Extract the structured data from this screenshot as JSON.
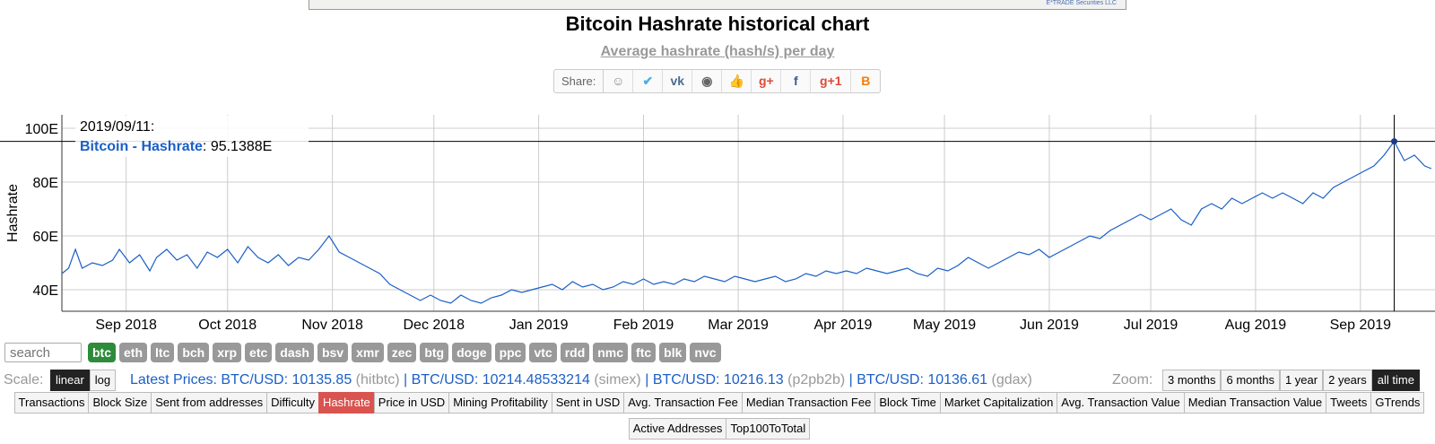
{
  "ad": {
    "text": "E*TRADE Securities LLC"
  },
  "header": {
    "title": "Bitcoin Hashrate historical chart",
    "subtitle": "Average hashrate (hash/s) per day"
  },
  "share": {
    "label": "Share:",
    "icons": [
      {
        "name": "reddit-icon",
        "glyph": "☺",
        "color": "#888"
      },
      {
        "name": "twitter-icon",
        "glyph": "✔",
        "color": "#4ab0e6"
      },
      {
        "name": "vk-icon",
        "glyph": "vk",
        "color": "#4c6c91"
      },
      {
        "name": "weibo-icon",
        "glyph": "◉",
        "color": "#666"
      },
      {
        "name": "like-icon",
        "glyph": "👍",
        "color": "#5b7bb5"
      },
      {
        "name": "google-plus-icon",
        "glyph": "g+",
        "color": "#dd4b39"
      },
      {
        "name": "facebook-icon",
        "glyph": "f",
        "color": "#3b5998"
      },
      {
        "name": "google-plus-one-icon",
        "glyph": "g+1",
        "color": "#dd4b39"
      },
      {
        "name": "blogger-icon",
        "glyph": "B",
        "color": "#f57d00"
      }
    ]
  },
  "chart_data": {
    "type": "line",
    "ylabel": "Hashrate",
    "ylim": [
      32,
      105
    ],
    "yticks": [
      {
        "label": "40E",
        "value": 40
      },
      {
        "label": "60E",
        "value": 60
      },
      {
        "label": "80E",
        "value": 80
      },
      {
        "label": "100E",
        "value": 100
      }
    ],
    "xlim": [
      "2018-08-13",
      "2019-09-22"
    ],
    "xticks": [
      {
        "label": "Sep 2018",
        "date": "2018-09-01"
      },
      {
        "label": "Oct 2018",
        "date": "2018-10-01"
      },
      {
        "label": "Nov 2018",
        "date": "2018-11-01"
      },
      {
        "label": "Dec 2018",
        "date": "2018-12-01"
      },
      {
        "label": "Jan 2019",
        "date": "2019-01-01"
      },
      {
        "label": "Feb 2019",
        "date": "2019-02-01"
      },
      {
        "label": "Mar 2019",
        "date": "2019-03-01"
      },
      {
        "label": "Apr 2019",
        "date": "2019-04-01"
      },
      {
        "label": "May 2019",
        "date": "2019-05-01"
      },
      {
        "label": "Jun 2019",
        "date": "2019-06-01"
      },
      {
        "label": "Jul 2019",
        "date": "2019-07-01"
      },
      {
        "label": "Aug 2019",
        "date": "2019-08-01"
      },
      {
        "label": "Sep 2019",
        "date": "2019-09-01"
      }
    ],
    "grid": true,
    "series": [
      {
        "name": "Bitcoin - Hashrate",
        "color": "#1a5fc7",
        "points": [
          [
            "2018-08-13",
            46
          ],
          [
            "2018-08-15",
            48
          ],
          [
            "2018-08-17",
            55
          ],
          [
            "2018-08-19",
            48
          ],
          [
            "2018-08-22",
            50
          ],
          [
            "2018-08-25",
            49
          ],
          [
            "2018-08-28",
            51
          ],
          [
            "2018-08-30",
            55
          ],
          [
            "2018-09-02",
            50
          ],
          [
            "2018-09-05",
            53
          ],
          [
            "2018-09-08",
            47
          ],
          [
            "2018-09-10",
            52
          ],
          [
            "2018-09-13",
            55
          ],
          [
            "2018-09-16",
            51
          ],
          [
            "2018-09-19",
            53
          ],
          [
            "2018-09-22",
            48
          ],
          [
            "2018-09-25",
            54
          ],
          [
            "2018-09-28",
            52
          ],
          [
            "2018-10-01",
            55
          ],
          [
            "2018-10-04",
            50
          ],
          [
            "2018-10-07",
            56
          ],
          [
            "2018-10-10",
            52
          ],
          [
            "2018-10-13",
            50
          ],
          [
            "2018-10-16",
            53
          ],
          [
            "2018-10-19",
            49
          ],
          [
            "2018-10-22",
            52
          ],
          [
            "2018-10-25",
            51
          ],
          [
            "2018-10-28",
            55
          ],
          [
            "2018-10-31",
            60
          ],
          [
            "2018-11-03",
            54
          ],
          [
            "2018-11-06",
            52
          ],
          [
            "2018-11-09",
            50
          ],
          [
            "2018-11-12",
            48
          ],
          [
            "2018-11-15",
            46
          ],
          [
            "2018-11-18",
            42
          ],
          [
            "2018-11-21",
            40
          ],
          [
            "2018-11-24",
            38
          ],
          [
            "2018-11-27",
            36
          ],
          [
            "2018-11-30",
            38
          ],
          [
            "2018-12-03",
            36
          ],
          [
            "2018-12-06",
            35
          ],
          [
            "2018-12-09",
            38
          ],
          [
            "2018-12-12",
            36
          ],
          [
            "2018-12-15",
            35
          ],
          [
            "2018-12-18",
            37
          ],
          [
            "2018-12-21",
            38
          ],
          [
            "2018-12-24",
            40
          ],
          [
            "2018-12-27",
            39
          ],
          [
            "2018-12-30",
            40
          ],
          [
            "2019-01-02",
            41
          ],
          [
            "2019-01-05",
            42
          ],
          [
            "2019-01-08",
            40
          ],
          [
            "2019-01-11",
            43
          ],
          [
            "2019-01-14",
            41
          ],
          [
            "2019-01-17",
            42
          ],
          [
            "2019-01-20",
            40
          ],
          [
            "2019-01-23",
            41
          ],
          [
            "2019-01-26",
            43
          ],
          [
            "2019-01-29",
            42
          ],
          [
            "2019-02-01",
            44
          ],
          [
            "2019-02-04",
            42
          ],
          [
            "2019-02-07",
            43
          ],
          [
            "2019-02-10",
            42
          ],
          [
            "2019-02-13",
            44
          ],
          [
            "2019-02-16",
            43
          ],
          [
            "2019-02-19",
            45
          ],
          [
            "2019-02-22",
            44
          ],
          [
            "2019-02-25",
            43
          ],
          [
            "2019-02-28",
            45
          ],
          [
            "2019-03-03",
            44
          ],
          [
            "2019-03-06",
            43
          ],
          [
            "2019-03-09",
            44
          ],
          [
            "2019-03-12",
            45
          ],
          [
            "2019-03-15",
            43
          ],
          [
            "2019-03-18",
            44
          ],
          [
            "2019-03-21",
            46
          ],
          [
            "2019-03-24",
            45
          ],
          [
            "2019-03-27",
            47
          ],
          [
            "2019-03-30",
            46
          ],
          [
            "2019-04-02",
            47
          ],
          [
            "2019-04-05",
            46
          ],
          [
            "2019-04-08",
            48
          ],
          [
            "2019-04-11",
            47
          ],
          [
            "2019-04-14",
            46
          ],
          [
            "2019-04-17",
            47
          ],
          [
            "2019-04-20",
            48
          ],
          [
            "2019-04-23",
            46
          ],
          [
            "2019-04-26",
            45
          ],
          [
            "2019-04-29",
            48
          ],
          [
            "2019-05-02",
            47
          ],
          [
            "2019-05-05",
            49
          ],
          [
            "2019-05-08",
            52
          ],
          [
            "2019-05-11",
            50
          ],
          [
            "2019-05-14",
            48
          ],
          [
            "2019-05-17",
            50
          ],
          [
            "2019-05-20",
            52
          ],
          [
            "2019-05-23",
            54
          ],
          [
            "2019-05-26",
            53
          ],
          [
            "2019-05-29",
            55
          ],
          [
            "2019-06-01",
            52
          ],
          [
            "2019-06-04",
            54
          ],
          [
            "2019-06-07",
            56
          ],
          [
            "2019-06-10",
            58
          ],
          [
            "2019-06-13",
            60
          ],
          [
            "2019-06-16",
            59
          ],
          [
            "2019-06-19",
            62
          ],
          [
            "2019-06-22",
            64
          ],
          [
            "2019-06-25",
            66
          ],
          [
            "2019-06-28",
            68
          ],
          [
            "2019-07-01",
            66
          ],
          [
            "2019-07-04",
            68
          ],
          [
            "2019-07-07",
            70
          ],
          [
            "2019-07-10",
            66
          ],
          [
            "2019-07-13",
            64
          ],
          [
            "2019-07-16",
            70
          ],
          [
            "2019-07-19",
            72
          ],
          [
            "2019-07-22",
            70
          ],
          [
            "2019-07-25",
            74
          ],
          [
            "2019-07-28",
            72
          ],
          [
            "2019-07-31",
            74
          ],
          [
            "2019-08-03",
            76
          ],
          [
            "2019-08-06",
            74
          ],
          [
            "2019-08-09",
            76
          ],
          [
            "2019-08-12",
            74
          ],
          [
            "2019-08-15",
            72
          ],
          [
            "2019-08-18",
            76
          ],
          [
            "2019-08-21",
            74
          ],
          [
            "2019-08-24",
            78
          ],
          [
            "2019-08-27",
            80
          ],
          [
            "2019-08-30",
            82
          ],
          [
            "2019-09-02",
            84
          ],
          [
            "2019-09-05",
            86
          ],
          [
            "2019-09-08",
            90
          ],
          [
            "2019-09-11",
            95.14
          ],
          [
            "2019-09-14",
            88
          ],
          [
            "2019-09-17",
            90
          ],
          [
            "2019-09-20",
            86
          ],
          [
            "2019-09-22",
            85
          ]
        ]
      }
    ],
    "tooltip": {
      "date": "2019/09/11:",
      "series": "Bitcoin - Hashrate",
      "value": "95.1388E"
    }
  },
  "controls": {
    "search_placeholder": "search",
    "coins": [
      "btc",
      "eth",
      "ltc",
      "bch",
      "xrp",
      "etc",
      "dash",
      "bsv",
      "xmr",
      "zec",
      "btg",
      "doge",
      "ppc",
      "vtc",
      "rdd",
      "nmc",
      "ftc",
      "blk",
      "nvc"
    ],
    "active_coin": "btc",
    "scale_label": "Scale:",
    "scale_options": [
      "linear",
      "log"
    ],
    "active_scale": "linear",
    "zoom_label": "Zoom:",
    "zoom_options": [
      "3 months",
      "6 months",
      "1 year",
      "2 years",
      "all time"
    ],
    "active_zoom": "all time"
  },
  "prices": {
    "label": "Latest Prices:",
    "items": [
      {
        "pair": "BTC/USD: 10135.85",
        "source": "(hitbtc)"
      },
      {
        "pair": "BTC/USD: 10214.48533214",
        "source": "(simex)"
      },
      {
        "pair": "BTC/USD: 10216.13",
        "source": "(p2pb2b)"
      },
      {
        "pair": "BTC/USD: 10136.61",
        "source": "(gdax)"
      }
    ]
  },
  "metrics": {
    "active": "Hashrate",
    "items": [
      "Transactions",
      "Block Size",
      "Sent from addresses",
      "Difficulty",
      "Hashrate",
      "Price in USD",
      "Mining Profitability",
      "Sent in USD",
      "Avg. Transaction Fee",
      "Median Transaction Fee",
      "Block Time",
      "Market Capitalization",
      "Avg. Transaction Value",
      "Median Transaction Value",
      "Tweets",
      "GTrends",
      "Active Addresses",
      "Top100ToTotal"
    ]
  }
}
